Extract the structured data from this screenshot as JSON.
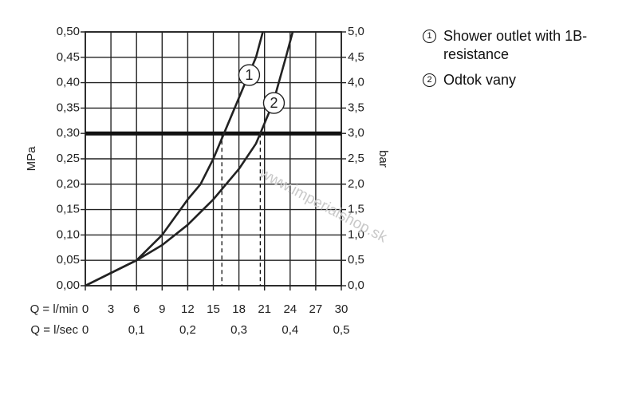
{
  "chart_data": {
    "type": "line",
    "x_label": "Q = l/min",
    "x2_label": "Q = l/sec",
    "y_label": "MPa",
    "y2_label": "bar",
    "xlim": [
      0,
      30
    ],
    "xticks": [
      0,
      3,
      6,
      9,
      12,
      15,
      18,
      21,
      24,
      27,
      30
    ],
    "x2lim": [
      0,
      0.5
    ],
    "x2ticks": [
      0,
      {
        "value": 0.1,
        "label": "0,1"
      },
      {
        "value": 0.2,
        "label": "0,2"
      },
      {
        "value": 0.3,
        "label": "0,3"
      },
      {
        "value": 0.4,
        "label": "0,4"
      },
      {
        "value": 0.5,
        "label": "0,5"
      }
    ],
    "ylim": [
      0,
      0.5
    ],
    "yticks": [
      {
        "value": 0,
        "label": "0,00"
      },
      {
        "value": 0.05,
        "label": "0,05"
      },
      {
        "value": 0.1,
        "label": "0,10"
      },
      {
        "value": 0.15,
        "label": "0,15"
      },
      {
        "value": 0.2,
        "label": "0,20"
      },
      {
        "value": 0.25,
        "label": "0,25"
      },
      {
        "value": 0.3,
        "label": "0,30"
      },
      {
        "value": 0.35,
        "label": "0,35"
      },
      {
        "value": 0.4,
        "label": "0,40"
      },
      {
        "value": 0.45,
        "label": "0,45"
      },
      {
        "value": 0.5,
        "label": "0,50"
      }
    ],
    "y2lim": [
      0,
      5
    ],
    "y2ticks": [
      {
        "value": 0,
        "label": "0,0"
      },
      {
        "value": 0.5,
        "label": "0,5"
      },
      {
        "value": 1,
        "label": "1,0"
      },
      {
        "value": 1.5,
        "label": "1,5"
      },
      {
        "value": 2,
        "label": "2,0"
      },
      {
        "value": 2.5,
        "label": "2,5"
      },
      {
        "value": 3,
        "label": "3,0"
      },
      {
        "value": 3.5,
        "label": "3,5"
      },
      {
        "value": 4,
        "label": "4,0"
      },
      {
        "value": 4.5,
        "label": "4,5"
      },
      {
        "value": 5,
        "label": "5,0"
      }
    ],
    "grid": true,
    "color": "#222222",
    "reference_y": 0.3,
    "reference_x": [
      16,
      20.5
    ],
    "watermark": "www.imperialshop.sk",
    "series": [
      {
        "name": "Shower outlet with 1B-resistance",
        "label": "1",
        "label_at": [
          19.2,
          0.415
        ],
        "color": "#222222",
        "x": [
          0,
          3,
          6,
          9,
          12,
          13.5,
          15,
          16,
          18,
          20,
          20.8
        ],
        "values": [
          0,
          0.025,
          0.05,
          0.1,
          0.17,
          0.2,
          0.25,
          0.29,
          0.37,
          0.45,
          0.5
        ]
      },
      {
        "name": "Odtok vany",
        "label": "2",
        "label_at": [
          22.1,
          0.36
        ],
        "color": "#222222",
        "x": [
          0,
          3,
          6,
          9,
          12,
          15,
          18,
          20,
          20.5,
          22,
          23.5,
          24.3
        ],
        "values": [
          0,
          0.025,
          0.05,
          0.08,
          0.12,
          0.17,
          0.23,
          0.28,
          0.3,
          0.36,
          0.45,
          0.5
        ]
      }
    ]
  }
}
